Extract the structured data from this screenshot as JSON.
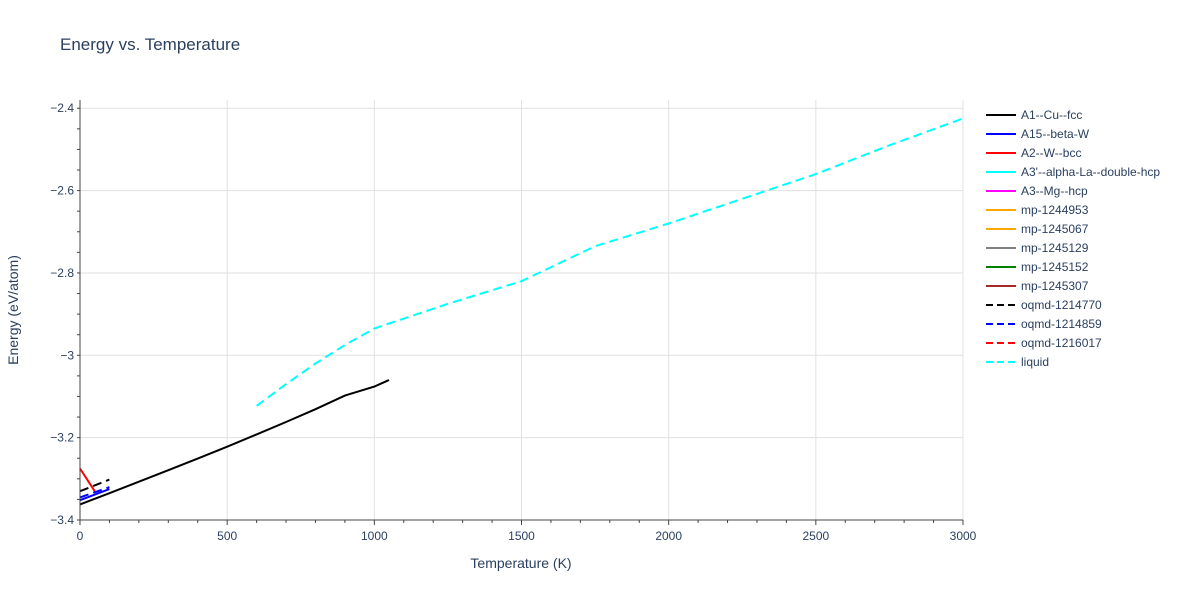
{
  "chart_data": {
    "type": "line",
    "title": "Energy vs. Temperature",
    "xlabel": "Temperature (K)",
    "ylabel": "Energy (eV/atom)",
    "xlim": [
      0,
      3000
    ],
    "ylim": [
      -3.4,
      -2.38
    ],
    "x_ticks": [
      0,
      500,
      1000,
      1500,
      2000,
      2500,
      3000
    ],
    "x_tick_labels": [
      "0",
      "500",
      "1000",
      "1500",
      "2000",
      "2500",
      "3000"
    ],
    "y_ticks": [
      -3.4,
      -3.2,
      -3.0,
      -2.8,
      -2.6,
      -2.4
    ],
    "y_tick_labels": [
      "−3.4",
      "−3.2",
      "−3",
      "−2.8",
      "−2.6",
      "−2.4"
    ],
    "grid": true,
    "legend_position": "right",
    "series": [
      {
        "name": "A1--Cu--fcc",
        "color": "#000000",
        "dash": "solid",
        "x": [
          0,
          100,
          200,
          300,
          400,
          500,
          600,
          700,
          800,
          900,
          1000,
          1050
        ],
        "y": [
          -3.362,
          -3.335,
          -3.307,
          -3.279,
          -3.251,
          -3.222,
          -3.192,
          -3.162,
          -3.131,
          -3.098,
          -3.076,
          -3.06
        ]
      },
      {
        "name": "A15--beta-W",
        "color": "#0000ff",
        "dash": "solid",
        "x": [
          0,
          100
        ],
        "y": [
          -3.352,
          -3.325
        ]
      },
      {
        "name": "A2--W--bcc",
        "color": "#ff0000",
        "dash": "solid",
        "x": [
          0,
          50
        ],
        "y": [
          -3.275,
          -3.33
        ]
      },
      {
        "name": "A3'--alpha-La--double-hcp",
        "color": "#00ffff",
        "dash": "solid",
        "x": [],
        "y": []
      },
      {
        "name": "A3--Mg--hcp",
        "color": "#ff00ff",
        "dash": "solid",
        "x": [],
        "y": []
      },
      {
        "name": "mp-1244953",
        "color": "#ffa500",
        "dash": "solid",
        "x": [],
        "y": []
      },
      {
        "name": "mp-1245067",
        "color": "#ffa500",
        "dash": "solid",
        "x": [],
        "y": []
      },
      {
        "name": "mp-1245129",
        "color": "#808080",
        "dash": "solid",
        "x": [],
        "y": []
      },
      {
        "name": "mp-1245152",
        "color": "#008000",
        "dash": "solid",
        "x": [],
        "y": []
      },
      {
        "name": "mp-1245307",
        "color": "#a52a2a",
        "dash": "solid",
        "x": [],
        "y": []
      },
      {
        "name": "oqmd-1214770",
        "color": "#000000",
        "dash": "dash",
        "x": [
          0,
          100
        ],
        "y": [
          -3.33,
          -3.302
        ]
      },
      {
        "name": "oqmd-1214859",
        "color": "#0000ff",
        "dash": "dash",
        "x": [
          0,
          100
        ],
        "y": [
          -3.345,
          -3.32
        ]
      },
      {
        "name": "oqmd-1216017",
        "color": "#ff0000",
        "dash": "dash",
        "x": [],
        "y": []
      },
      {
        "name": "liquid",
        "color": "#00ffff",
        "dash": "dash",
        "x": [
          600,
          700,
          800,
          900,
          1000,
          1250,
          1500,
          1750,
          2000,
          2250,
          2500,
          2750,
          3000
        ],
        "y": [
          -3.123,
          -3.07,
          -3.02,
          -2.975,
          -2.935,
          -2.875,
          -2.82,
          -2.735,
          -2.68,
          -2.62,
          -2.56,
          -2.49,
          -2.425
        ]
      }
    ]
  }
}
